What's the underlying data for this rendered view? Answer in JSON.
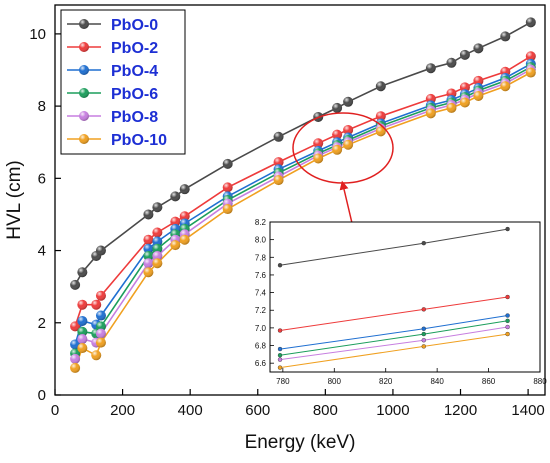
{
  "chart_data": [
    {
      "type": "line",
      "title": "",
      "xlabel": "Energy (keV)",
      "ylabel": "HVL (cm)",
      "xlim": [
        0,
        1450
      ],
      "ylim": [
        0,
        10.8
      ],
      "xticks": [
        0,
        200,
        400,
        600,
        800,
        1000,
        1200,
        1400
      ],
      "yticks": [
        0,
        2,
        4,
        6,
        8,
        10
      ],
      "grid": false,
      "legend": "top-left",
      "x": [
        59.5,
        80.9,
        122,
        136,
        276.4,
        302.9,
        356,
        383.8,
        511,
        661.6,
        778.9,
        834.8,
        867.4,
        964.1,
        1112.1,
        1173.2,
        1213,
        1252.9,
        1332.5,
        1408
      ],
      "series": [
        {
          "name": "PbO-0",
          "color": "#4a4a4a",
          "values": [
            3.05,
            3.4,
            3.85,
            4.0,
            5.0,
            5.2,
            5.5,
            5.7,
            6.4,
            7.15,
            7.7,
            7.95,
            8.12,
            8.55,
            9.05,
            9.2,
            9.42,
            9.6,
            9.93,
            10.32
          ]
        },
        {
          "name": "PbO-2",
          "color": "#ee3b3b",
          "values": [
            1.9,
            2.5,
            2.5,
            2.75,
            4.3,
            4.5,
            4.8,
            4.95,
            5.75,
            6.45,
            6.97,
            7.21,
            7.34,
            7.72,
            8.2,
            8.35,
            8.52,
            8.7,
            8.95,
            9.38
          ]
        },
        {
          "name": "PbO-4",
          "color": "#1f6fd1",
          "values": [
            1.4,
            2.05,
            1.95,
            2.2,
            4.05,
            4.25,
            4.6,
            4.75,
            5.5,
            6.25,
            6.76,
            7.0,
            7.13,
            7.52,
            8.02,
            8.17,
            8.33,
            8.5,
            8.78,
            9.17
          ]
        },
        {
          "name": "PbO-6",
          "color": "#1c9e5c",
          "values": [
            1.15,
            1.75,
            1.7,
            1.9,
            3.85,
            4.05,
            4.45,
            4.6,
            5.4,
            6.15,
            6.69,
            6.92,
            7.06,
            7.45,
            7.95,
            8.1,
            8.25,
            8.43,
            8.7,
            9.08
          ]
        },
        {
          "name": "PbO-8",
          "color": "#c77fe0",
          "values": [
            1.0,
            1.55,
            1.45,
            1.7,
            3.65,
            3.85,
            4.3,
            4.45,
            5.3,
            6.05,
            6.63,
            6.86,
            7.0,
            7.38,
            7.88,
            8.03,
            8.18,
            8.36,
            8.63,
            9.01
          ]
        },
        {
          "name": "PbO-10",
          "color": "#f0a020",
          "values": [
            0.75,
            1.3,
            1.1,
            1.45,
            3.4,
            3.65,
            4.15,
            4.3,
            5.15,
            5.95,
            6.55,
            6.79,
            6.93,
            7.3,
            7.8,
            7.95,
            8.1,
            8.28,
            8.55,
            8.93
          ]
        }
      ]
    },
    {
      "type": "line",
      "title": "",
      "xlabel": "",
      "ylabel": "",
      "xlim": [
        775,
        880
      ],
      "ylim": [
        6.5,
        8.2
      ],
      "xticks": [
        780,
        800,
        820,
        840,
        860,
        880
      ],
      "yticks": [
        6.6,
        6.8,
        7.0,
        7.2,
        7.4,
        7.6,
        7.8,
        8.0,
        8.2
      ],
      "grid": false,
      "x": [
        778.9,
        834.8,
        867.4
      ],
      "series": [
        {
          "color": "#4a4a4a",
          "values": [
            7.71,
            7.96,
            8.12
          ]
        },
        {
          "color": "#ee3b3b",
          "values": [
            6.97,
            7.21,
            7.35
          ]
        },
        {
          "color": "#1f6fd1",
          "values": [
            6.76,
            6.99,
            7.14
          ]
        },
        {
          "color": "#1c9e5c",
          "values": [
            6.69,
            6.93,
            7.08
          ]
        },
        {
          "color": "#c77fe0",
          "values": [
            6.64,
            6.86,
            7.01
          ]
        },
        {
          "color": "#f0a020",
          "values": [
            6.55,
            6.79,
            6.93
          ]
        }
      ]
    }
  ]
}
